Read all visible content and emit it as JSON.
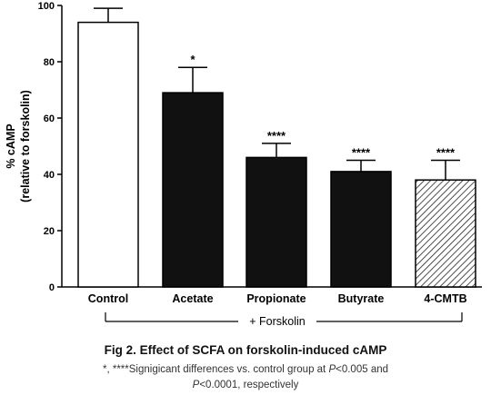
{
  "chart_data": {
    "type": "bar",
    "categories": [
      "Control",
      "Acetate",
      "Propionate",
      "Butyrate",
      "4-CMTB"
    ],
    "values": [
      94,
      69,
      46,
      41,
      38
    ],
    "errors": [
      5,
      9,
      5,
      4,
      7
    ],
    "significance": [
      "",
      "*",
      "****",
      "****",
      "****"
    ],
    "fills": [
      "white",
      "black",
      "black",
      "black",
      "hatched"
    ],
    "ylabel_line1": "% cAMP",
    "ylabel_line2": "(relative to forskolin)",
    "ylim": [
      0,
      100
    ],
    "yticks": [
      0,
      20,
      40,
      60,
      80,
      100
    ],
    "bracket_label": "+ Forskolin",
    "colors": {
      "bar_dark": "#111111",
      "axis": "#000000"
    }
  },
  "caption": {
    "title": "Fig 2. Effect of SCFA on forskolin-induced cAMP",
    "note_prefix": "*, ****Signigicant differences vs. control group at ",
    "note_p1": "P",
    "note_mid": "<0.005 and",
    "note_p2": "P",
    "note_suffix": "<0.0001, respectively"
  }
}
